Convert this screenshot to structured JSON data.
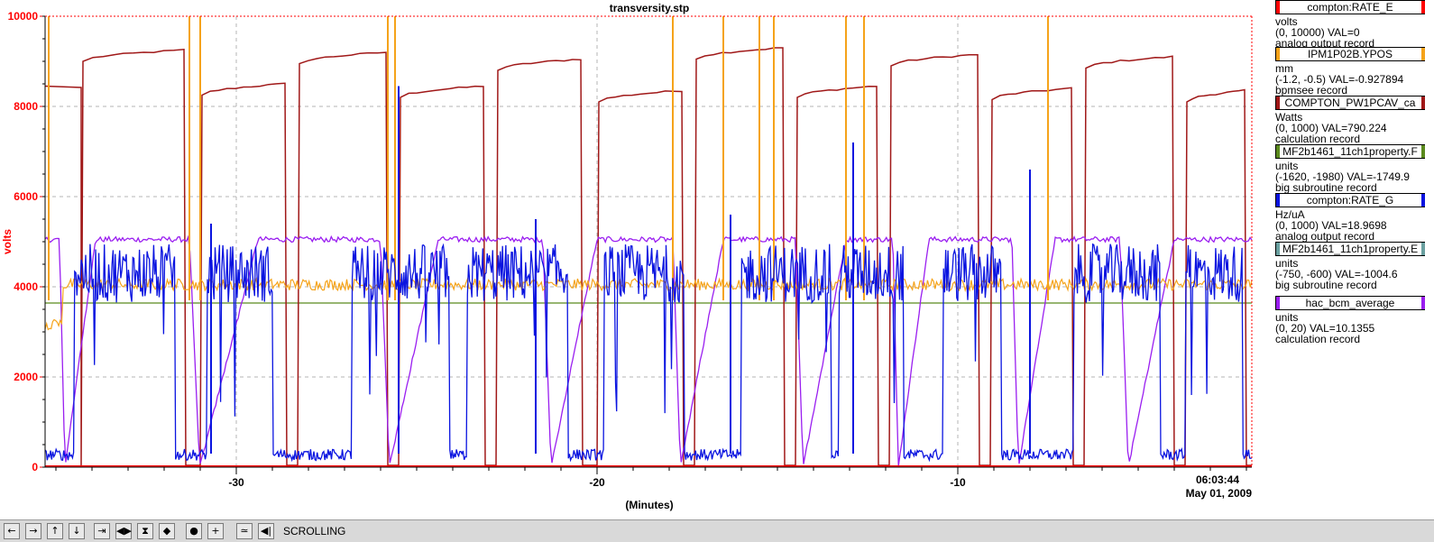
{
  "chart_data": {
    "type": "line",
    "title": "transversity.stp",
    "xlabel": "(Minutes)",
    "ylabel": "volts",
    "xlim": [
      -35.3,
      -1.85
    ],
    "ylim": [
      0,
      10000
    ],
    "x_ticks": [
      -30,
      -20,
      -10
    ],
    "y_ticks": [
      0,
      2000,
      4000,
      6000,
      8000,
      10000
    ],
    "grid": true,
    "timestamp": "06:03:44",
    "date": "May 01, 2009",
    "colors": {
      "green": "#5b8a1e",
      "orange": "#f5a31a",
      "dark_red": "#a01818",
      "blue": "#0a14e0",
      "purple": "#9a1ef0",
      "red": "#ff0000"
    }
  },
  "legend": [
    {
      "name": "compton:RATE_E",
      "unit": "volts",
      "range": "(0, 10000)  VAL=0",
      "record": "analog output record",
      "color": "#ff0000"
    },
    {
      "name": "IPM1P02B.YPOS",
      "unit": "mm",
      "range": "(-1.2, -0.5) VAL=-0.927894",
      "record": "bpmsee record",
      "color": "#f5a31a"
    },
    {
      "name": "COMPTON_PW1PCAV_ca",
      "unit": "Watts",
      "range": "(0, 1000) VAL=790.224",
      "record": "calculation record",
      "color": "#a01818"
    },
    {
      "name": "MF2b1461_11ch1property.F",
      "unit": "units",
      "range": "(-1620, -1980)  VAL=-1749.9",
      "record": "big subroutine record",
      "color": "#5b8a1e"
    },
    {
      "name": "compton:RATE_G",
      "unit": "Hz/uA",
      "range": "(0, 1000) VAL=18.9698",
      "record": "analog output record",
      "color": "#0a14e0"
    },
    {
      "name": "MF2b1461_11ch1property.E",
      "unit": "units",
      "range": "(-750, -600) VAL=-1004.6",
      "record": "big subroutine record",
      "color": "#6aa0a0"
    },
    {
      "name": "hac_bcm_average",
      "unit": "units",
      "range": "(0, 20) VAL=10.1355",
      "record": "calculation record",
      "color": "#9a1ef0"
    }
  ],
  "toolbar": {
    "buttons": [
      "←",
      "→",
      "↑",
      "↓",
      "⇥",
      "◀▶",
      "⧗",
      "◆",
      "●",
      "+",
      "≃",
      "◀|"
    ],
    "mode_label": "SCROLLING"
  }
}
